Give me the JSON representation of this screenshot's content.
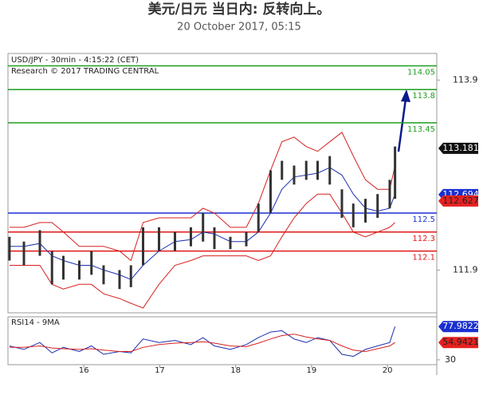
{
  "chart_data": {
    "type": "ohlc",
    "title": "美元/日元 当日内: 反转向上。",
    "subtitle": "20 October 2017, 05:15",
    "header_lines": [
      "USD/JPY - 30min - 4:15:22 (CET)",
      "Research © 2017 TRADING CENTRAL"
    ],
    "xlim": [
      15,
      20.65
    ],
    "xticks": [
      16,
      17,
      18,
      19,
      20
    ],
    "ylim": [
      111.45,
      114.18
    ],
    "yticks": [
      111.9,
      113.9
    ],
    "x": [
      15.02,
      15.21,
      15.42,
      15.58,
      15.73,
      15.94,
      16.1,
      16.26,
      16.47,
      16.62,
      16.78,
      16.99,
      17.2,
      17.41,
      17.57,
      17.72,
      17.93,
      18.14,
      18.3,
      18.46,
      18.61,
      18.77,
      18.93,
      19.08,
      19.24,
      19.4,
      19.55,
      19.71,
      19.87,
      20.03,
      20.1
    ],
    "high": [
      112.25,
      112.2,
      112.32,
      112.1,
      112.05,
      112.0,
      112.1,
      111.95,
      111.9,
      111.95,
      112.35,
      112.35,
      112.3,
      112.35,
      112.5,
      112.35,
      112.25,
      112.3,
      112.6,
      112.95,
      113.05,
      113.0,
      113.05,
      113.05,
      113.1,
      112.75,
      112.6,
      112.65,
      112.7,
      112.85,
      113.2
    ],
    "low": [
      112.0,
      111.95,
      112.05,
      111.75,
      111.8,
      111.8,
      111.85,
      111.75,
      111.7,
      111.72,
      111.95,
      112.1,
      112.1,
      112.15,
      112.2,
      112.12,
      112.12,
      112.15,
      112.3,
      112.5,
      112.85,
      112.8,
      112.85,
      112.85,
      112.8,
      112.45,
      112.35,
      112.4,
      112.45,
      112.55,
      112.65
    ],
    "bb_upper": [
      112.35,
      112.35,
      112.4,
      112.4,
      112.3,
      112.15,
      112.15,
      112.15,
      112.1,
      112.0,
      112.4,
      112.45,
      112.45,
      112.45,
      112.55,
      112.5,
      112.35,
      112.35,
      112.6,
      112.95,
      113.25,
      113.3,
      113.2,
      113.15,
      113.25,
      113.35,
      113.1,
      112.85,
      112.75,
      112.75,
      113.0
    ],
    "bb_lower": [
      111.95,
      111.95,
      111.95,
      111.75,
      111.7,
      111.75,
      111.75,
      111.65,
      111.6,
      111.55,
      111.5,
      111.75,
      111.95,
      112.0,
      112.05,
      112.05,
      112.05,
      112.05,
      112.0,
      112.05,
      112.25,
      112.45,
      112.6,
      112.7,
      112.7,
      112.5,
      112.3,
      112.25,
      112.3,
      112.35,
      112.4
    ],
    "bb_mid": [
      112.15,
      112.15,
      112.18,
      112.05,
      112.0,
      111.95,
      111.95,
      111.9,
      111.85,
      111.8,
      111.95,
      112.1,
      112.2,
      112.22,
      112.3,
      112.28,
      112.2,
      112.2,
      112.3,
      112.5,
      112.75,
      112.88,
      112.9,
      112.92,
      112.98,
      112.9,
      112.7,
      112.55,
      112.52,
      112.55,
      112.7
    ],
    "bar_color": "#333333",
    "band_color": "#d62020",
    "mid_color": "#1a2fb0",
    "levels": [
      {
        "value": 114.05,
        "color": "#1e9e1e"
      },
      {
        "value": 113.8,
        "color": "#1e9e1e"
      },
      {
        "value": 113.45,
        "color": "#1e9e1e"
      },
      {
        "value": 112.5,
        "color": "#1a2fd0"
      },
      {
        "value": 112.3,
        "color": "#e01818"
      },
      {
        "value": 112.1,
        "color": "#e01818"
      }
    ],
    "price_tags": [
      {
        "value": 113.181,
        "color": "#111111",
        "text_color": "#ffffff"
      },
      {
        "value": 112.694,
        "color": "#1a2fd0",
        "text_color": "#ffffff"
      },
      {
        "value": 112.627,
        "color": "#e62020",
        "text_color": "#222222"
      }
    ],
    "rsi": {
      "label": "RSI14 - 9MA",
      "ylim": [
        23,
        92
      ],
      "yticks": [
        30
      ],
      "values": [
        50,
        45,
        55,
        40,
        48,
        42,
        50,
        38,
        42,
        40,
        60,
        55,
        58,
        52,
        62,
        50,
        45,
        52,
        62,
        70,
        72,
        60,
        55,
        62,
        58,
        38,
        35,
        45,
        50,
        55,
        78
      ],
      "ma": [
        48,
        48,
        50,
        47,
        46,
        45,
        46,
        44,
        42,
        42,
        48,
        52,
        54,
        55,
        56,
        54,
        50,
        49,
        54,
        60,
        65,
        67,
        63,
        60,
        58,
        50,
        44,
        42,
        46,
        50,
        55
      ],
      "color": "#1a2fb0",
      "ma_color": "#d62020",
      "tags": [
        {
          "value": 77.9822,
          "color": "#1a2fd0",
          "text_color": "#ffffff"
        },
        {
          "value": 54.9421,
          "color": "#e62020",
          "text_color": "#222222"
        }
      ]
    }
  }
}
